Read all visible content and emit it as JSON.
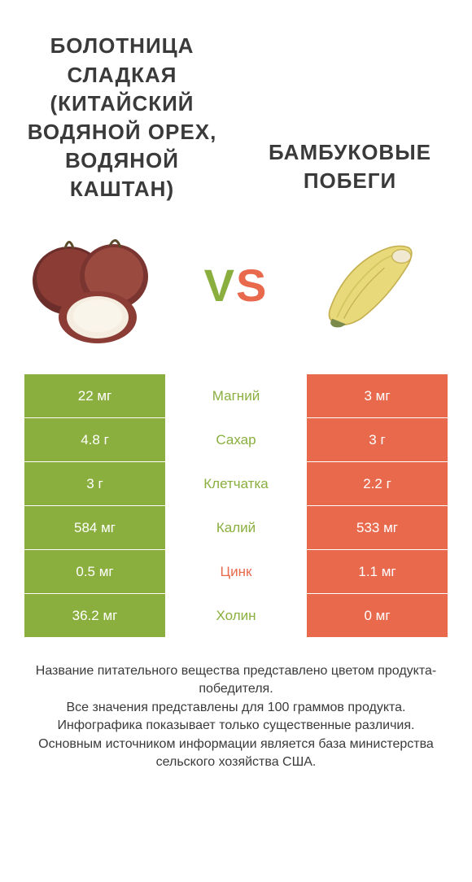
{
  "colors": {
    "left": "#8aaf3e",
    "right": "#e8694c",
    "text": "#3a3a3a",
    "vs_left": "#8aaf3e",
    "vs_right": "#e8694c"
  },
  "title_left": "БОЛОТНИЦА СЛАДКАЯ (КИТАЙСКИЙ ВОДЯНОЙ ОРЕХ, ВОДЯНОЙ КАШТАН)",
  "title_right": "БАМБУКОВЫЕ ПОБЕГИ",
  "vs": "VS",
  "rows": [
    {
      "left": "22 мг",
      "mid": "Магний",
      "right": "3 мг",
      "winner": "left"
    },
    {
      "left": "4.8 г",
      "mid": "Сахар",
      "right": "3 г",
      "winner": "left"
    },
    {
      "left": "3 г",
      "mid": "Клетчатка",
      "right": "2.2 г",
      "winner": "left"
    },
    {
      "left": "584 мг",
      "mid": "Калий",
      "right": "533 мг",
      "winner": "left"
    },
    {
      "left": "0.5 мг",
      "mid": "Цинк",
      "right": "1.1 мг",
      "winner": "right"
    },
    {
      "left": "36.2 мг",
      "mid": "Холин",
      "right": "0 мг",
      "winner": "left"
    }
  ],
  "footer": "Название питательного вещества представлено цветом продукта-победителя.\nВсе значения представлены для 100 граммов продукта.\nИнфографика показывает только существенные различия.\nОсновным источником информации является база министерства сельского хозяйства США."
}
